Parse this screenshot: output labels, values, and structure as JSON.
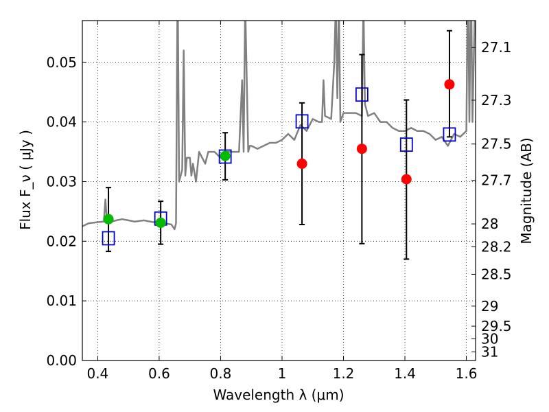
{
  "chart_data": {
    "type": "scatter",
    "xlabel": "Wavelength  λ (μm)",
    "ylabel": "Flux  F_ν (  μJy )",
    "y2label": "Magnitude (AB)",
    "xlim": [
      0.35,
      1.63
    ],
    "ylim": [
      0.0,
      0.057
    ],
    "x_ticks": [
      0.4,
      0.6,
      0.8,
      1.0,
      1.2,
      1.4,
      1.6
    ],
    "x_tick_labels": [
      "0.4",
      "0.6",
      "0.8",
      "1",
      "1.2",
      "1.4",
      "1.6"
    ],
    "y_ticks": [
      0.0,
      0.01,
      0.02,
      0.03,
      0.04,
      0.05
    ],
    "y_tick_labels": [
      "0.00",
      "0.01",
      "0.02",
      "0.03",
      "0.04",
      "0.05"
    ],
    "y2_ticks": [
      {
        "label": "27.1",
        "mag": 27.1
      },
      {
        "label": "27.3",
        "mag": 27.3
      },
      {
        "label": "27.5",
        "mag": 27.5
      },
      {
        "label": "27.7",
        "mag": 27.7
      },
      {
        "label": "28",
        "mag": 28.0
      },
      {
        "label": "28.2",
        "mag": 28.2
      },
      {
        "label": "28.5",
        "mag": 28.5
      },
      {
        "label": "29",
        "mag": 29.0
      },
      {
        "label": "29.5",
        "mag": 29.5
      },
      {
        "label": "30",
        "mag": 30.0
      },
      {
        "label": "31",
        "mag": 31.0
      }
    ],
    "grid": true,
    "colors": {
      "spectrum": "#808080",
      "model_points": "#0000cc",
      "red_points": "#ff0000",
      "green_points": "#00bb00",
      "errorbars": "#000000"
    },
    "model_spectrum": {
      "x": [
        0.35,
        0.37,
        0.4,
        0.42,
        0.425,
        0.43,
        0.44,
        0.46,
        0.48,
        0.5,
        0.52,
        0.55,
        0.58,
        0.6,
        0.62,
        0.64,
        0.65,
        0.655,
        0.66,
        0.665,
        0.67,
        0.675,
        0.68,
        0.685,
        0.69,
        0.7,
        0.705,
        0.71,
        0.72,
        0.73,
        0.74,
        0.75,
        0.76,
        0.78,
        0.8,
        0.81,
        0.82,
        0.84,
        0.86,
        0.87,
        0.875,
        0.88,
        0.89,
        0.895,
        0.9,
        0.92,
        0.94,
        0.96,
        0.98,
        1.0,
        1.02,
        1.04,
        1.06,
        1.08,
        1.1,
        1.12,
        1.13,
        1.135,
        1.14,
        1.16,
        1.17,
        1.175,
        1.18,
        1.185,
        1.19,
        1.2,
        1.22,
        1.24,
        1.26,
        1.265,
        1.27,
        1.28,
        1.3,
        1.32,
        1.34,
        1.36,
        1.38,
        1.4,
        1.42,
        1.44,
        1.46,
        1.48,
        1.5,
        1.52,
        1.54,
        1.56,
        1.58,
        1.6,
        1.605,
        1.61,
        1.615,
        1.62,
        1.63
      ],
      "y": [
        0.0225,
        0.023,
        0.0232,
        0.0233,
        0.027,
        0.0235,
        0.0232,
        0.0235,
        0.0237,
        0.0235,
        0.0233,
        0.0235,
        0.0232,
        0.0233,
        0.023,
        0.0228,
        0.022,
        0.023,
        0.065,
        0.03,
        0.031,
        0.032,
        0.052,
        0.031,
        0.034,
        0.034,
        0.031,
        0.033,
        0.03,
        0.035,
        0.034,
        0.033,
        0.035,
        0.035,
        0.034,
        0.034,
        0.035,
        0.035,
        0.035,
        0.047,
        0.035,
        0.06,
        0.035,
        0.036,
        0.036,
        0.0355,
        0.036,
        0.0365,
        0.0365,
        0.037,
        0.038,
        0.037,
        0.0395,
        0.0385,
        0.0405,
        0.04,
        0.04,
        0.047,
        0.041,
        0.0405,
        0.05,
        0.06,
        0.044,
        0.06,
        0.04,
        0.0415,
        0.0415,
        0.0415,
        0.041,
        0.06,
        0.043,
        0.041,
        0.0415,
        0.04,
        0.04,
        0.039,
        0.0385,
        0.0385,
        0.039,
        0.0385,
        0.0385,
        0.038,
        0.037,
        0.0375,
        0.036,
        0.038,
        0.0375,
        0.0385,
        0.065,
        0.04,
        0.065,
        0.04,
        0.065
      ]
    },
    "errorbars": [
      {
        "x": 0.435,
        "low": 0.0183,
        "high": 0.029
      },
      {
        "x": 0.605,
        "low": 0.0195,
        "high": 0.0267
      },
      {
        "x": 0.815,
        "low": 0.0303,
        "high": 0.0382
      },
      {
        "x": 1.065,
        "low": 0.0228,
        "high": 0.0432
      },
      {
        "x": 1.26,
        "low": 0.0196,
        "high": 0.0513
      },
      {
        "x": 1.405,
        "low": 0.017,
        "high": 0.0437
      },
      {
        "x": 1.545,
        "low": 0.0375,
        "high": 0.0553
      }
    ],
    "series": [
      {
        "marker": "square-open",
        "x": [
          0.435,
          0.605,
          0.815,
          1.065,
          1.26,
          1.405,
          1.545
        ],
        "y": [
          0.0205,
          0.0238,
          0.0342,
          0.0401,
          0.0446,
          0.0362,
          0.0379
        ]
      },
      {
        "marker": "circle-filled-red",
        "x": [
          1.065,
          1.26,
          1.405,
          1.545
        ],
        "y": [
          0.033,
          0.0355,
          0.0304,
          0.0463
        ]
      },
      {
        "marker": "circle-filled-green",
        "x": [
          0.435,
          0.605,
          0.815
        ],
        "y": [
          0.0237,
          0.0231,
          0.0343
        ]
      }
    ]
  }
}
